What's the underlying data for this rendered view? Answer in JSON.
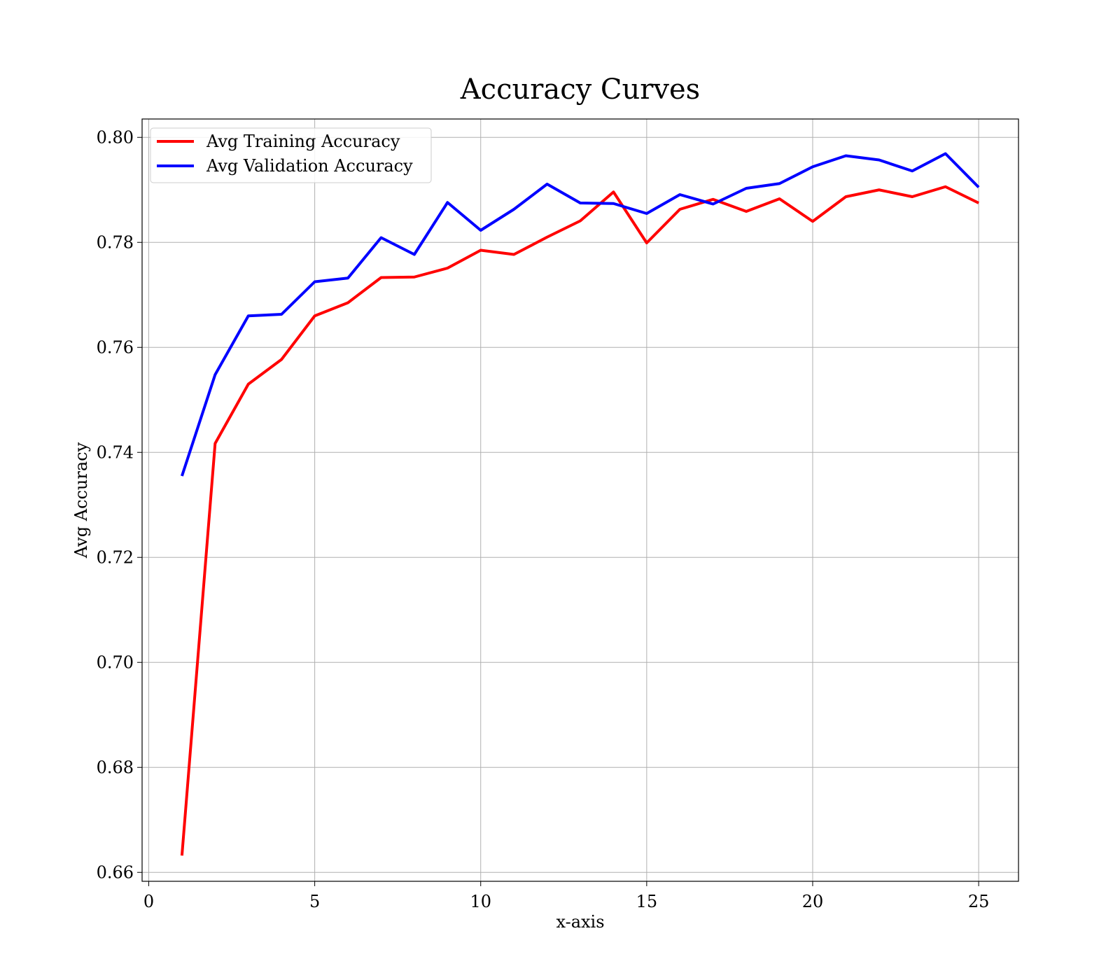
{
  "chart_data": {
    "type": "line",
    "title": "Accuracy Curves",
    "xlabel": "x-axis",
    "ylabel": "Avg Accuracy",
    "xlim": [
      -0.2,
      26.2
    ],
    "ylim": [
      0.6583,
      0.8035
    ],
    "xticks": [
      0,
      5,
      10,
      15,
      20,
      25
    ],
    "xtick_labels": [
      "0",
      "5",
      "10",
      "15",
      "20",
      "25"
    ],
    "yticks": [
      0.66,
      0.68,
      0.7,
      0.72,
      0.74,
      0.76,
      0.78,
      0.8
    ],
    "ytick_labels": [
      "0.66",
      "0.68",
      "0.70",
      "0.72",
      "0.74",
      "0.76",
      "0.78",
      "0.80"
    ],
    "grid": true,
    "legend_position": "top-left",
    "x": [
      1,
      2,
      3,
      4,
      5,
      6,
      7,
      8,
      9,
      10,
      11,
      12,
      13,
      14,
      15,
      16,
      17,
      18,
      19,
      20,
      21,
      22,
      23,
      24,
      25
    ],
    "series": [
      {
        "name": "Avg Training Accuracy",
        "color": "#ff0000",
        "values": [
          0.6632,
          0.7417,
          0.753,
          0.7577,
          0.766,
          0.7685,
          0.7733,
          0.7734,
          0.7751,
          0.7785,
          0.7777,
          0.781,
          0.7841,
          0.7896,
          0.7799,
          0.7863,
          0.7882,
          0.7859,
          0.7883,
          0.784,
          0.7887,
          0.79,
          0.7887,
          0.7906,
          0.7875
        ]
      },
      {
        "name": "Avg Validation Accuracy",
        "color": "#0000ff",
        "values": [
          0.7355,
          0.7548,
          0.766,
          0.7663,
          0.7725,
          0.7732,
          0.7809,
          0.7777,
          0.7876,
          0.7823,
          0.7863,
          0.7911,
          0.7875,
          0.7874,
          0.7855,
          0.7891,
          0.7873,
          0.7903,
          0.7912,
          0.7944,
          0.7965,
          0.7957,
          0.7936,
          0.7969,
          0.7905
        ]
      }
    ]
  }
}
